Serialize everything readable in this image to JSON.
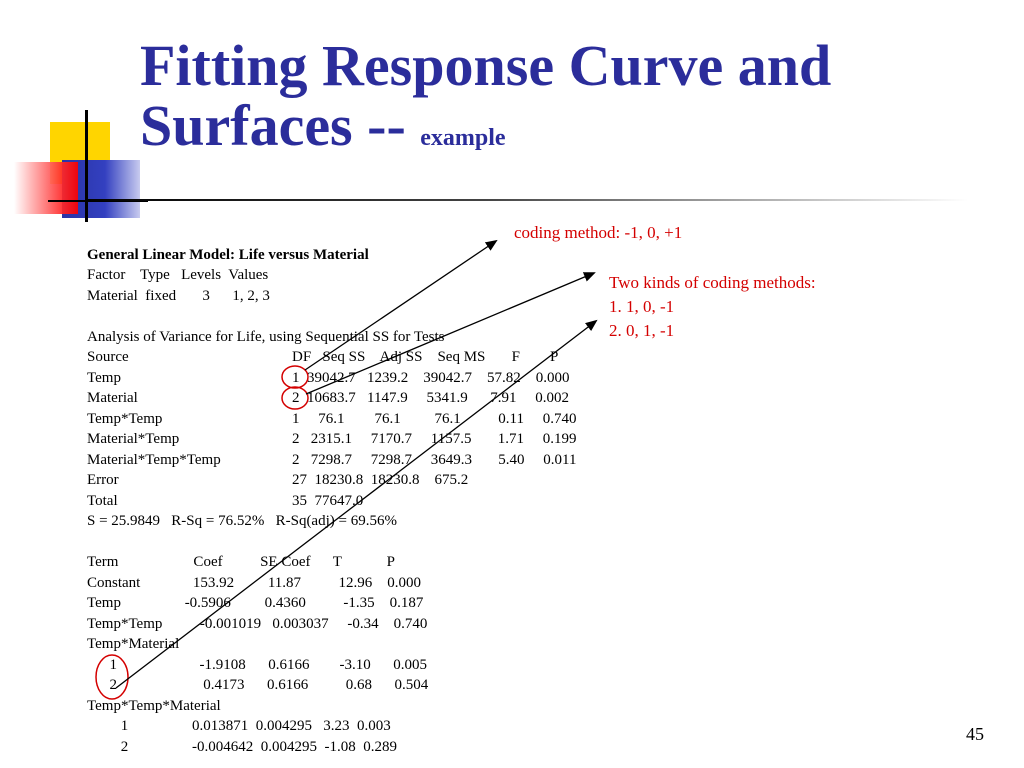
{
  "title": {
    "main_line1": "Fitting Response Curve and",
    "main_line2": "Surfaces --",
    "subtitle": "example"
  },
  "output": {
    "heading": "General Linear Model: Life versus Material",
    "factor_header": "Factor    Type   Levels  Values",
    "factor_row": "Material  fixed       3      1, 2, 3",
    "anova_title": "Analysis of Variance for Life, using Sequential SS for Tests",
    "anova_header": {
      "source": "Source",
      "stats": "DF   Seq SS    Adj SS    Seq MS       F        P"
    },
    "anova_rows": [
      {
        "source": "Temp",
        "stats": "1  39042.7   1239.2    39042.7    57.82    0.000"
      },
      {
        "source": "Material",
        "stats": "2  10683.7   1147.9     5341.9      7.91     0.002"
      },
      {
        "source": "Temp*Temp",
        "stats": "1     76.1        76.1         76.1          0.11     0.740"
      },
      {
        "source": "Material*Temp",
        "stats": "2   2315.1     7170.7     1157.5       1.71     0.199"
      },
      {
        "source": "Material*Temp*Temp",
        "stats": "2   7298.7     7298.7     3649.3       5.40     0.011"
      },
      {
        "source": "Error",
        "stats": "27  18230.8  18230.8    675.2"
      },
      {
        "source": "Total",
        "stats": "35  77647.0"
      }
    ],
    "summary": "S = 25.9849   R-Sq = 76.52%   R-Sq(adj) = 69.56%",
    "coef_header": "Term                    Coef          SE Coef      T            P",
    "coef_rows": [
      "Constant              153.92         11.87          12.96    0.000",
      "Temp                 -0.5906         0.4360          -1.35    0.187",
      "Temp*Temp          -0.001019   0.003037     -0.34    0.740",
      "Temp*Material",
      "      1                      -1.9108      0.6166        -3.10      0.005",
      "      2                       0.4173      0.6166          0.68      0.504",
      "Temp*Temp*Material",
      "         1                 0.013871  0.004295   3.23  0.003",
      "         2                 -0.004642  0.004295  -1.08  0.289"
    ]
  },
  "annotations": {
    "coding_method": "coding method: -1, 0, +1",
    "two_kinds": "Two kinds of coding methods:",
    "method1": "1.  1, 0, -1",
    "method2": "2.  0, 1, -1"
  },
  "page_number": "45",
  "colors": {
    "title": "#2b2d9b",
    "annotation": "#d40000",
    "logo_yellow": "#ffd500",
    "logo_blue": "#2a34a6",
    "logo_red": "#ff0000"
  }
}
